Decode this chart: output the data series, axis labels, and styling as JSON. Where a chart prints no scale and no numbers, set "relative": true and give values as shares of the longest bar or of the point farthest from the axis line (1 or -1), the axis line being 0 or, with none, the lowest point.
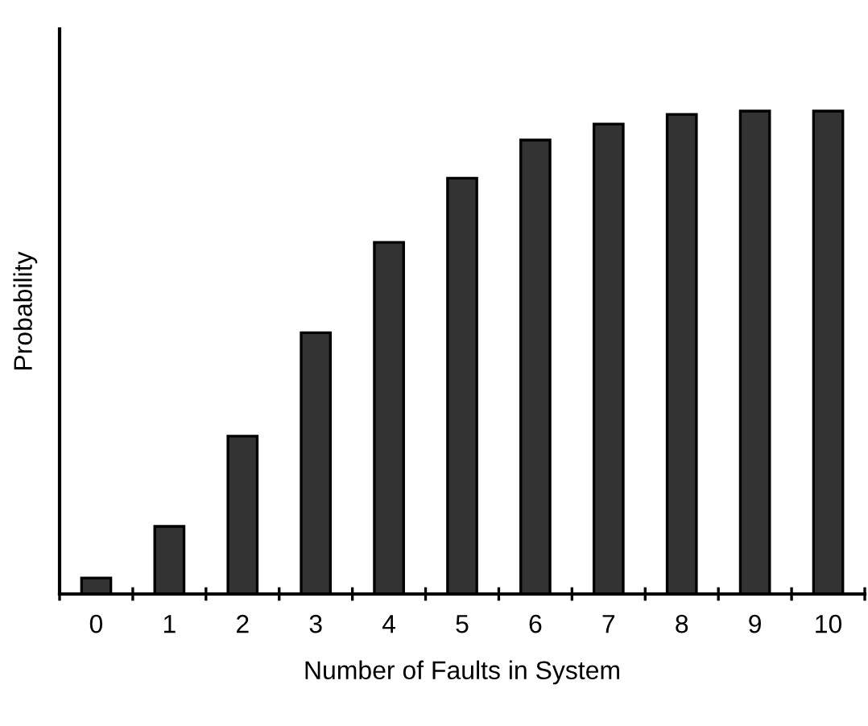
{
  "chart_data": {
    "type": "bar",
    "xlabel": "Number of Faults in System",
    "ylabel": "Probability",
    "relative": true,
    "categories": [
      "0",
      "1",
      "2",
      "3",
      "4",
      "5",
      "6",
      "7",
      "8",
      "9",
      "10"
    ],
    "values": [
      0.033,
      0.14,
      0.327,
      0.541,
      0.728,
      0.861,
      0.94,
      0.973,
      0.993,
      1,
      1
    ],
    "color": "#333333",
    "grid": false,
    "legend": false
  }
}
